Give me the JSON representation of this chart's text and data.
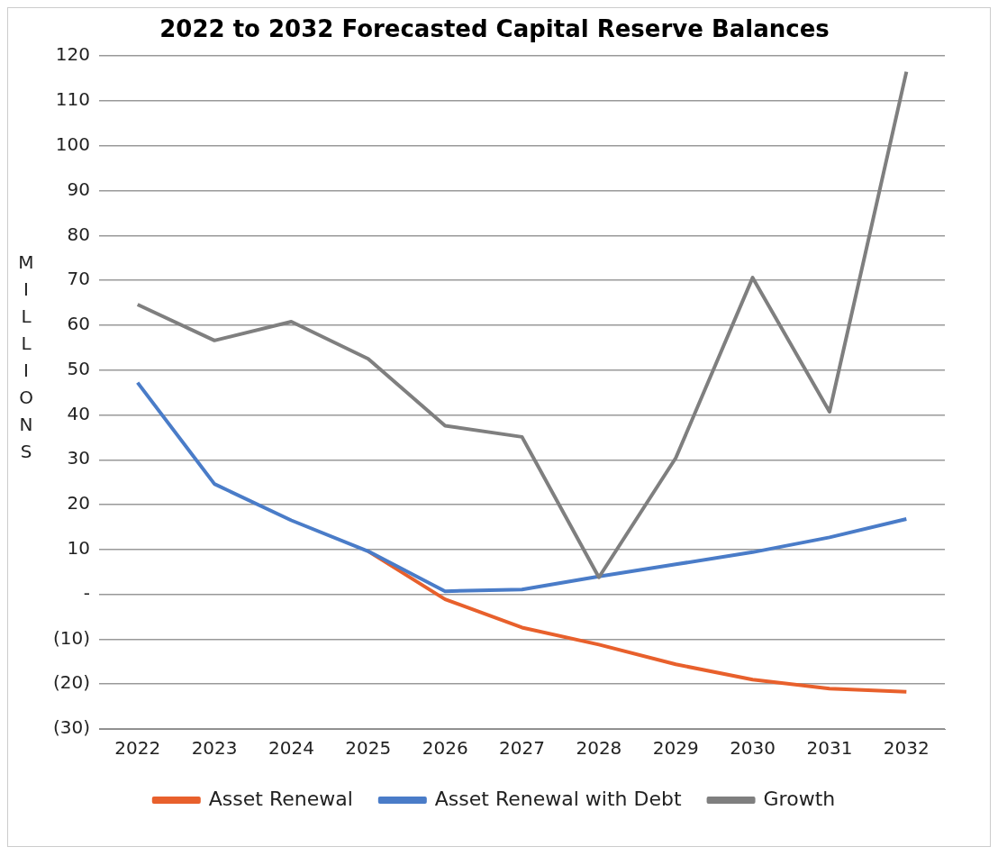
{
  "chart_data": {
    "type": "line",
    "title": "2022 to 2032 Forecasted Capital Reserve Balances",
    "ylabel": "MILLIONS",
    "categories": [
      "2022",
      "2023",
      "2024",
      "2025",
      "2026",
      "2027",
      "2028",
      "2029",
      "2030",
      "2031",
      "2032"
    ],
    "series": [
      {
        "name": "Asset Renewal",
        "color": "#e8602c",
        "values": [
          null,
          null,
          null,
          9.6,
          -1.1,
          -7.4,
          -11.2,
          -15.6,
          -19,
          -21,
          -21.7
        ]
      },
      {
        "name": "Asset Renewal with Debt",
        "color": "#4a7cc8",
        "values": [
          47.2,
          24.6,
          16.5,
          9.6,
          0.7,
          1.1,
          4,
          6.7,
          9.4,
          12.7,
          16.8
        ]
      },
      {
        "name": "Growth",
        "color": "#7f7f7f",
        "values": [
          64.6,
          56.6,
          60.8,
          52.5,
          37.6,
          35.1,
          3.8,
          30.4,
          70.6,
          40.7,
          116.5
        ]
      }
    ],
    "ylim": [
      -30,
      120
    ],
    "yticks": [
      {
        "value": -30,
        "label": "(30)"
      },
      {
        "value": -20,
        "label": "(20)"
      },
      {
        "value": -10,
        "label": "(10)"
      },
      {
        "value": 0,
        "label": "-"
      },
      10,
      20,
      30,
      40,
      50,
      60,
      70,
      80,
      90,
      100,
      110,
      120
    ],
    "grid": "y",
    "legend": "bottom",
    "marker": "none",
    "line_style": "solid"
  }
}
